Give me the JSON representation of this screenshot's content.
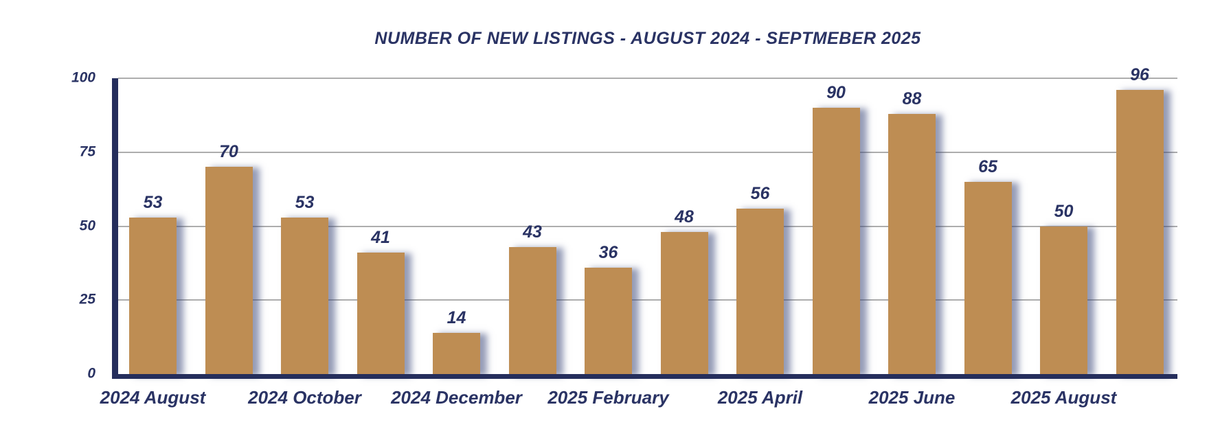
{
  "chart_data": {
    "type": "bar",
    "title": "NUMBER OF NEW LISTINGS - AUGUST 2024 - SEPTMEBER 2025",
    "values": [
      53,
      70,
      53,
      41,
      14,
      43,
      36,
      48,
      56,
      90,
      88,
      65,
      50,
      96
    ],
    "x_tick_labels": [
      {
        "bar_index": 0,
        "label": "2024 August"
      },
      {
        "bar_index": 2,
        "label": "2024 October"
      },
      {
        "bar_index": 4,
        "label": "2024 December"
      },
      {
        "bar_index": 6,
        "label": "2025 February"
      },
      {
        "bar_index": 8,
        "label": "2025 April"
      },
      {
        "bar_index": 10,
        "label": "2025 June"
      },
      {
        "bar_index": 12,
        "label": "2025 August"
      }
    ],
    "y_ticks": [
      0,
      25,
      50,
      75,
      100
    ],
    "ylim": [
      0,
      100
    ],
    "grid": true,
    "legend": false,
    "colors": {
      "bar_fill": "#BE8D53",
      "navy": "#2A3364",
      "axis_line": "#252E5C",
      "gridline": "#ADADAD",
      "background": "#FFFFFF"
    }
  }
}
